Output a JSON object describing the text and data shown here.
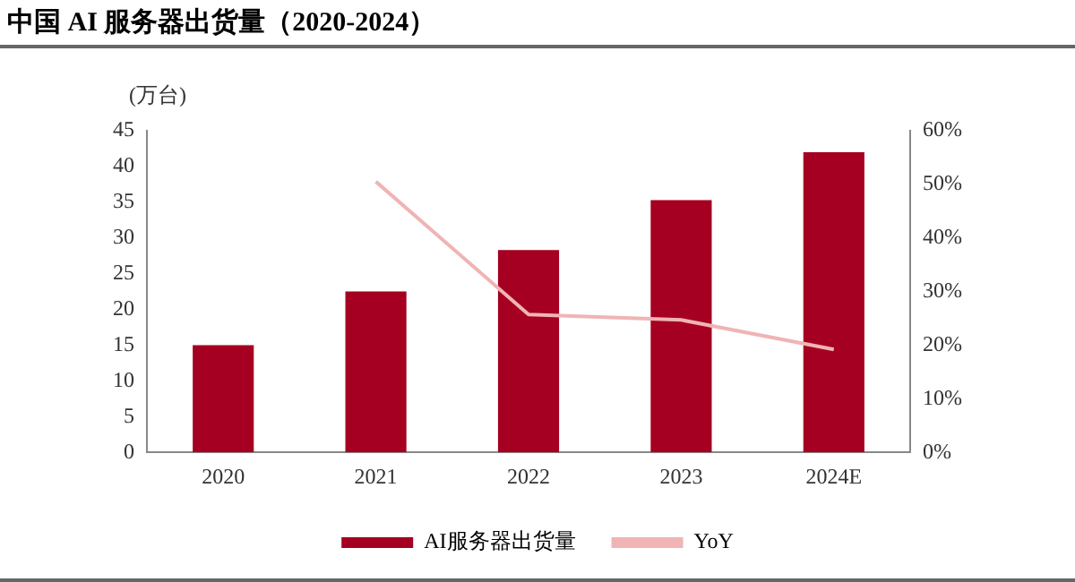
{
  "chart_data": {
    "type": "bar",
    "title": "中国 AI 服务器出货量（2020-2024）",
    "ylabel": "(万台)",
    "categories": [
      "2020",
      "2021",
      "2022",
      "2023",
      "2024E"
    ],
    "series": [
      {
        "name": "AI服务器出货量",
        "color": "#a50021",
        "values": [
          15,
          22.5,
          28.3,
          35.3,
          42
        ]
      },
      {
        "name": "YoY",
        "type": "line",
        "axis": "y2",
        "color": "#f0b4b4",
        "values": [
          null,
          50.5,
          25.7,
          24.7,
          19.2
        ]
      }
    ],
    "ylim": [
      0,
      45
    ],
    "yticks": [
      0,
      5,
      10,
      15,
      20,
      25,
      30,
      35,
      40,
      45
    ],
    "y2lim": [
      0,
      60
    ],
    "y2ticks": [
      {
        "value": 0,
        "label": "0%"
      },
      {
        "value": 10,
        "label": "10%"
      },
      {
        "value": 20,
        "label": "20%"
      },
      {
        "value": 30,
        "label": "30%"
      },
      {
        "value": 40,
        "label": "40%"
      },
      {
        "value": 50,
        "label": "50%"
      },
      {
        "value": 60,
        "label": "60%"
      }
    ],
    "grid": false,
    "legend": "bottom",
    "marker": "none",
    "line_style": "solid"
  }
}
